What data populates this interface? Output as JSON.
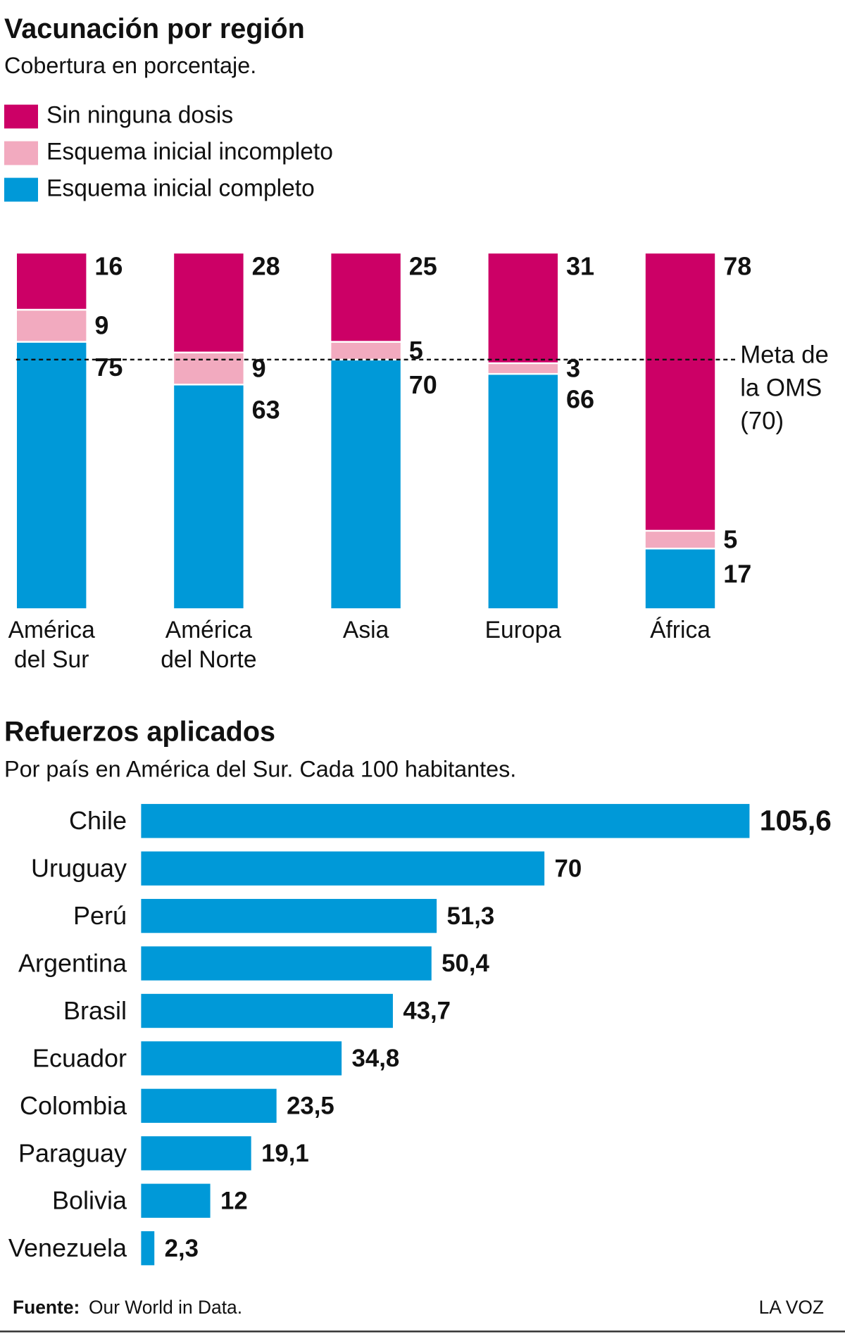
{
  "chart_data": [
    {
      "type": "stacked_bar",
      "title": "Vacunación por región",
      "subtitle": "Cobertura en porcentaje.",
      "categories": [
        "América del Sur",
        "América del Norte",
        "Asia",
        "Europa",
        "África"
      ],
      "series": [
        {
          "name": "Sin ninguna dosis",
          "color": "#cc0066",
          "values": [
            16,
            28,
            25,
            31,
            78
          ]
        },
        {
          "name": "Esquema inicial incompleto",
          "color": "#f2aabf",
          "values": [
            9,
            9,
            5,
            3,
            5
          ]
        },
        {
          "name": "Esquema inicial completo",
          "color": "#0099d8",
          "values": [
            75,
            63,
            70,
            66,
            17
          ]
        }
      ],
      "ylim": [
        0,
        100
      ],
      "reference": {
        "value": 70,
        "label_lines": [
          "Meta de",
          "la OMS",
          "(70)"
        ]
      }
    },
    {
      "type": "hbar",
      "title": "Refuerzos aplicados",
      "subtitle": "Por país en América del Sur. Cada 100 habitantes.",
      "categories": [
        "Chile",
        "Uruguay",
        "Perú",
        "Argentina",
        "Brasil",
        "Ecuador",
        "Colombia",
        "Paraguay",
        "Bolivia",
        "Venezuela"
      ],
      "values": [
        105.6,
        70,
        51.3,
        50.4,
        43.7,
        34.8,
        23.5,
        19.1,
        12,
        2.3
      ],
      "value_labels": [
        "105,6",
        "70",
        "51,3",
        "50,4",
        "43,7",
        "34,8",
        "23,5",
        "19,1",
        "12",
        "2,3"
      ],
      "color": "#0099d8",
      "xlim": [
        0,
        105.6
      ]
    }
  ],
  "footer": {
    "source_label": "Fuente:",
    "source": "Our World in Data.",
    "brand": "LA VOZ"
  }
}
